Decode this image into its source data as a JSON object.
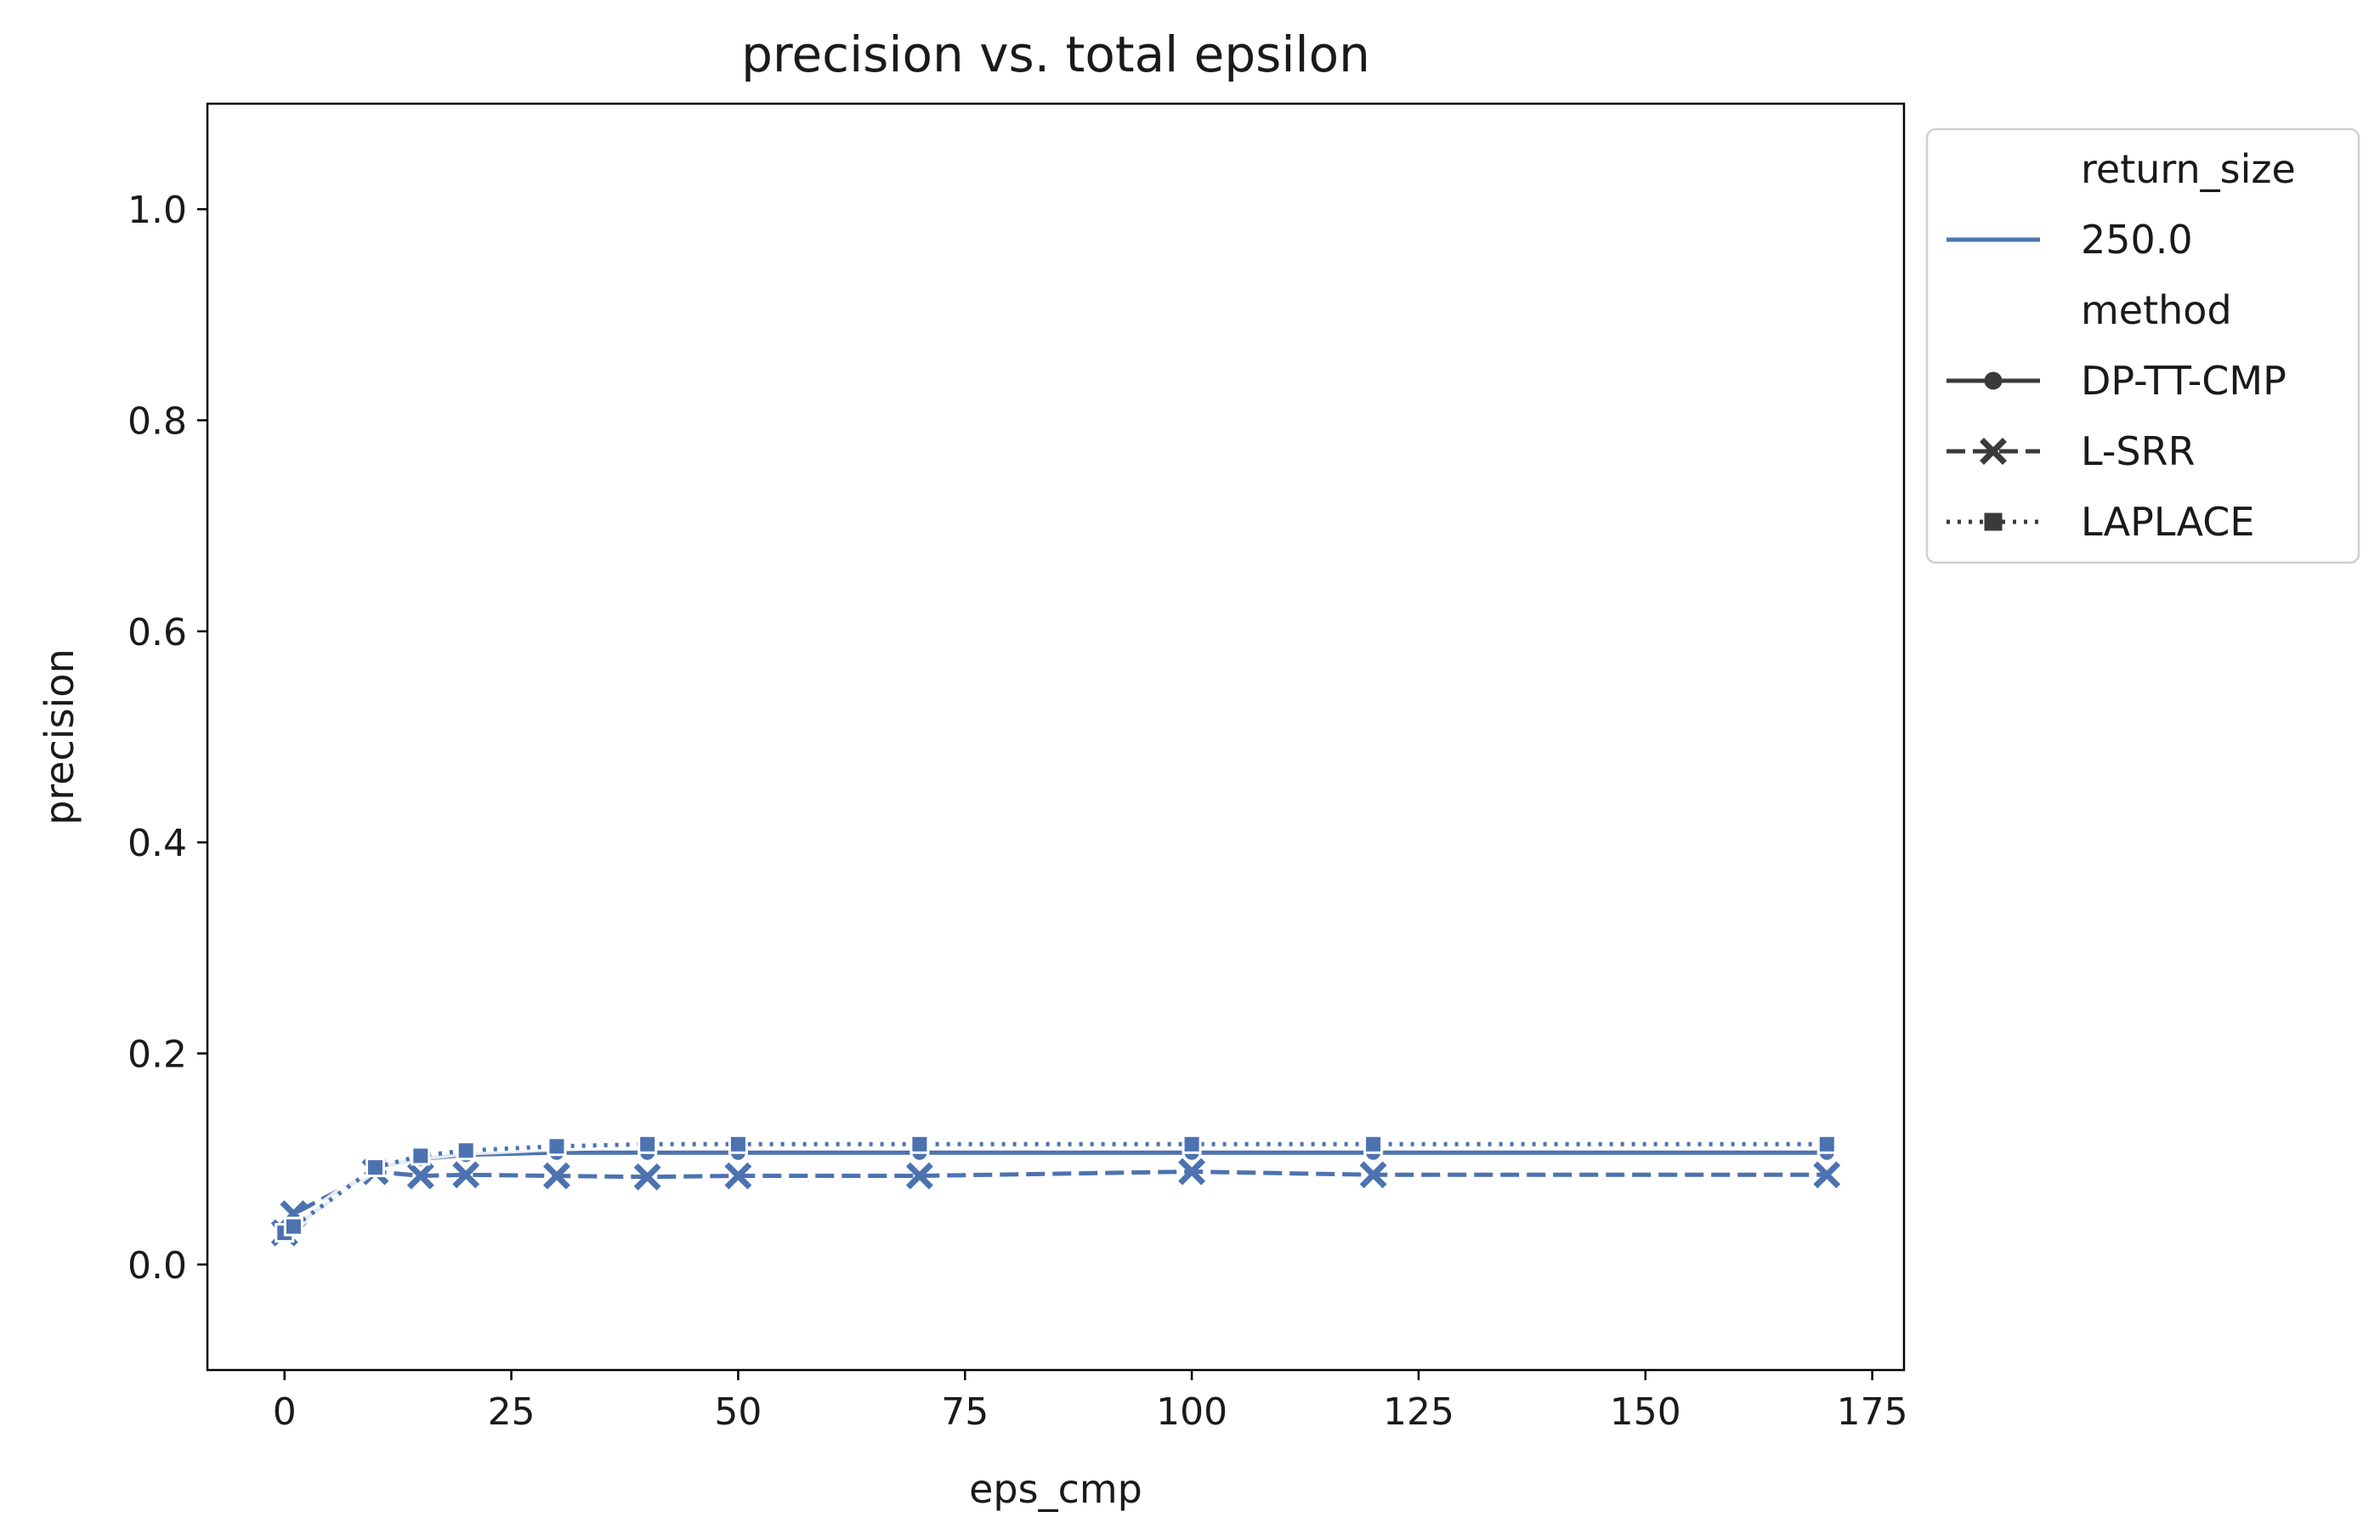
{
  "chart_data": {
    "type": "line",
    "title": "precision vs. total epsilon",
    "xlabel": "eps_cmp",
    "ylabel": "precision",
    "xlim": [
      -8.5,
      178.5
    ],
    "ylim": [
      -0.1,
      1.1
    ],
    "xticks": [
      0,
      25,
      50,
      75,
      100,
      125,
      150,
      175
    ],
    "xtick_labels": [
      "0",
      "25",
      "50",
      "75",
      "100",
      "125",
      "150",
      "175"
    ],
    "yticks": [
      0.0,
      0.2,
      0.4,
      0.6,
      0.8,
      1.0
    ],
    "ytick_labels": [
      "0.0",
      "0.2",
      "0.4",
      "0.6",
      "0.8",
      "1.0"
    ],
    "grid": false,
    "legend_position": "outside-right-top",
    "color": "#4c72b0",
    "legend": {
      "hue_title": "return_size",
      "hue_entries": [
        {
          "label": "250.0",
          "color": "#4c72b0"
        }
      ],
      "style_title": "method",
      "style_entries": [
        {
          "label": "DP-TT-CMP",
          "marker": "circle",
          "dash": "solid"
        },
        {
          "label": "L-SRR",
          "marker": "x",
          "dash": "dashed"
        },
        {
          "label": "LAPLACE",
          "marker": "square",
          "dash": "dotted"
        }
      ]
    },
    "x": [
      0,
      1,
      10,
      15,
      20,
      30,
      40,
      50,
      70,
      100,
      120,
      170
    ],
    "series": [
      {
        "name": "DP-TT-CMP",
        "marker": "circle",
        "dash": "solid",
        "values": [
          0.03,
          0.035,
          0.092,
          0.1,
          0.104,
          0.106,
          0.106,
          0.106,
          0.106,
          0.106,
          0.106,
          0.106
        ]
      },
      {
        "name": "L-SRR",
        "marker": "x",
        "dash": "dashed",
        "values": [
          0.03,
          0.048,
          0.088,
          0.084,
          0.085,
          0.084,
          0.083,
          0.084,
          0.084,
          0.088,
          0.085,
          0.085
        ]
      },
      {
        "name": "LAPLACE",
        "marker": "square",
        "dash": "dotted",
        "values": [
          0.03,
          0.036,
          0.092,
          0.103,
          0.108,
          0.112,
          0.114,
          0.114,
          0.114,
          0.114,
          0.114,
          0.114
        ]
      }
    ]
  }
}
